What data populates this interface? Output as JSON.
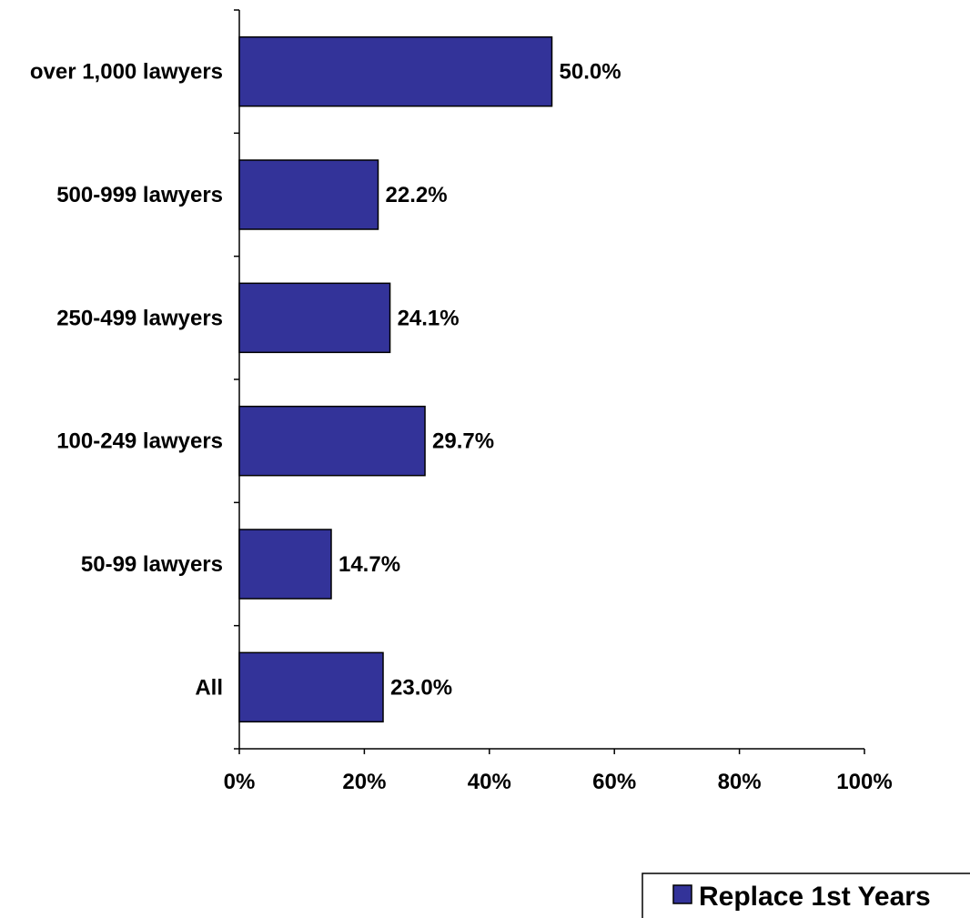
{
  "chart_data": {
    "type": "bar",
    "orientation": "horizontal",
    "categories": [
      "over 1,000 lawyers",
      "500-999 lawyers",
      "250-499 lawyers",
      "100-249 lawyers",
      "50-99 lawyers",
      "All"
    ],
    "series": [
      {
        "name": "Replace 1st Years",
        "values": [
          50.0,
          22.2,
          24.1,
          29.7,
          14.7,
          23.0
        ],
        "value_labels": [
          "50.0%",
          "22.2%",
          "24.1%",
          "29.7%",
          "14.7%",
          "23.0%"
        ],
        "color": "#333399"
      }
    ],
    "xlim": [
      0,
      100
    ],
    "x_ticks": [
      0,
      20,
      40,
      60,
      80,
      100
    ],
    "x_tick_labels": [
      "0%",
      "20%",
      "40%",
      "60%",
      "80%",
      "100%"
    ],
    "title": "",
    "xlabel": "",
    "ylabel": "",
    "grid": false,
    "legend_position": "bottom-right"
  }
}
